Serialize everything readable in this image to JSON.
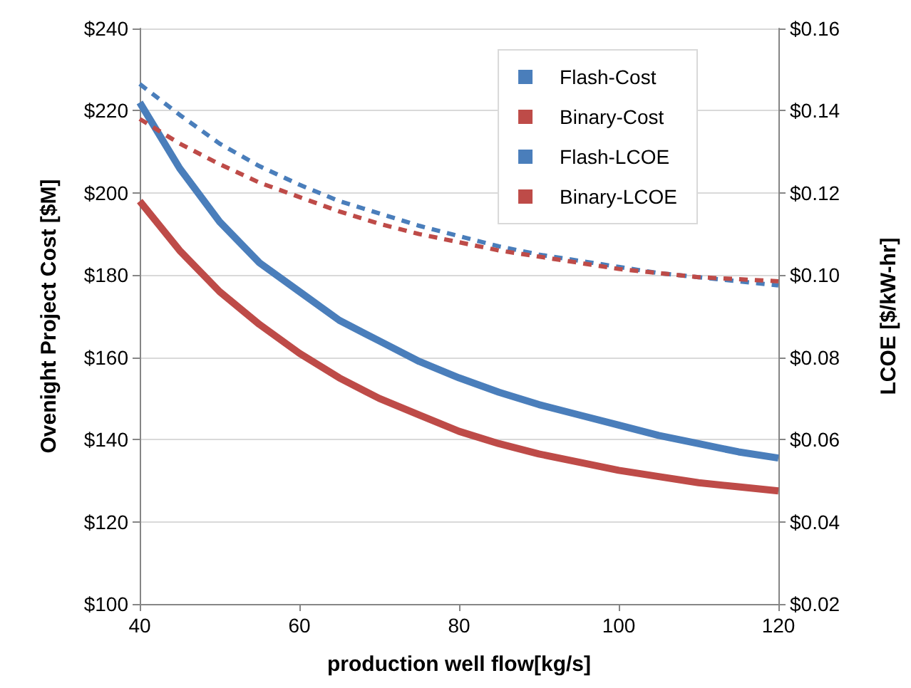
{
  "chart_data": {
    "type": "line",
    "xlabel": "production well flow[kg/s]",
    "ylabel": "Ovenight Project Cost [$M]",
    "y2label": "LCOE [$/kW-hr]",
    "x": [
      40,
      45,
      50,
      55,
      60,
      65,
      70,
      75,
      80,
      85,
      90,
      95,
      100,
      105,
      110,
      115,
      120
    ],
    "series": [
      {
        "name": "Flash-Cost",
        "color": "#4a7ebb",
        "line_style": "solid",
        "values": [
          222,
          206,
          193,
          183,
          176,
          169,
          164,
          159,
          155,
          151.5,
          148.5,
          146,
          143.5,
          141,
          139,
          137,
          135.5
        ]
      },
      {
        "name": "Binary-Cost",
        "color": "#be4b48",
        "line_style": "solid",
        "values": [
          198,
          186,
          176,
          168,
          161,
          155,
          150,
          146,
          142,
          139,
          136.5,
          134.5,
          132.5,
          131,
          129.5,
          128.5,
          127.5
        ]
      },
      {
        "name": "Flash-LCOE",
        "color": "#4a7ebb",
        "line_style": "dashed",
        "axis": "y2",
        "values": [
          0.1465,
          0.139,
          0.132,
          0.1265,
          0.122,
          0.118,
          0.115,
          0.112,
          0.1095,
          0.107,
          0.105,
          0.1035,
          0.102,
          0.1005,
          0.0995,
          0.0985,
          0.0975
        ]
      },
      {
        "name": "Binary-LCOE",
        "color": "#be4b48",
        "line_style": "dashed",
        "axis": "y2",
        "values": [
          0.138,
          0.132,
          0.127,
          0.1225,
          0.119,
          0.1155,
          0.1125,
          0.11,
          0.108,
          0.106,
          0.1045,
          0.103,
          0.1015,
          0.1005,
          0.0995,
          0.099,
          0.0985
        ]
      }
    ],
    "xlim": [
      40,
      120
    ],
    "xticks": [
      40,
      60,
      80,
      100,
      120
    ],
    "ylim": [
      100,
      240
    ],
    "yticks": [
      {
        "value": 100,
        "label": "$100"
      },
      {
        "value": 120,
        "label": "$120"
      },
      {
        "value": 140,
        "label": "$140"
      },
      {
        "value": 160,
        "label": "$160"
      },
      {
        "value": 180,
        "label": "$180"
      },
      {
        "value": 200,
        "label": "$200"
      },
      {
        "value": 220,
        "label": "$220"
      },
      {
        "value": 240,
        "label": "$240"
      }
    ],
    "y2lim": [
      0.02,
      0.16
    ],
    "y2ticks": [
      {
        "value": 0.02,
        "label": "$0.02"
      },
      {
        "value": 0.04,
        "label": "$0.04"
      },
      {
        "value": 0.06,
        "label": "$0.06"
      },
      {
        "value": 0.08,
        "label": "$0.08"
      },
      {
        "value": 0.1,
        "label": "$0.10"
      },
      {
        "value": 0.12,
        "label": "$0.12"
      },
      {
        "value": 0.14,
        "label": "$0.14"
      },
      {
        "value": 0.16,
        "label": "$0.16"
      }
    ],
    "grid": "y",
    "legend": "top right",
    "marker": "none"
  }
}
